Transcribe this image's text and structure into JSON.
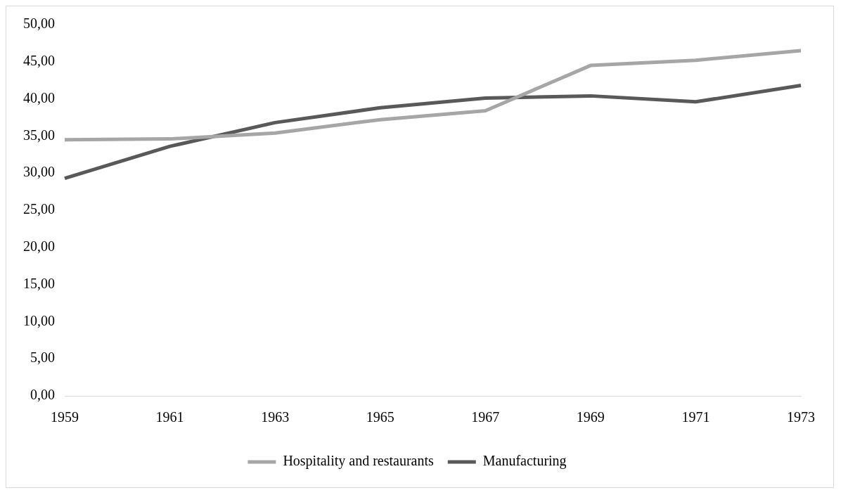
{
  "chart_data": {
    "type": "line",
    "categories": [
      "1959",
      "1961",
      "1963",
      "1965",
      "1967",
      "1969",
      "1971",
      "1973"
    ],
    "series": [
      {
        "name": "Hospitality and restaurants",
        "color": "#a6a6a6",
        "values": [
          34.5,
          34.6,
          35.4,
          37.2,
          38.4,
          44.5,
          45.2,
          46.5
        ]
      },
      {
        "name": "Manufacturing",
        "color": "#595959",
        "values": [
          29.3,
          33.6,
          36.8,
          38.8,
          40.1,
          40.4,
          39.6,
          41.8
        ]
      }
    ],
    "ylim": [
      0,
      50
    ],
    "yticks": [
      {
        "value": 0,
        "label": "0,00"
      },
      {
        "value": 5,
        "label": "5,00"
      },
      {
        "value": 10,
        "label": "10,00"
      },
      {
        "value": 15,
        "label": "15,00"
      },
      {
        "value": 20,
        "label": "20,00"
      },
      {
        "value": 25,
        "label": "25,00"
      },
      {
        "value": 30,
        "label": "30,00"
      },
      {
        "value": 35,
        "label": "35,00"
      },
      {
        "value": 40,
        "label": "40,00"
      },
      {
        "value": 45,
        "label": "45,00"
      },
      {
        "value": 50,
        "label": "50,00"
      }
    ],
    "grid": false,
    "legend": "bottom",
    "marker": "none",
    "line_style": "solid"
  }
}
